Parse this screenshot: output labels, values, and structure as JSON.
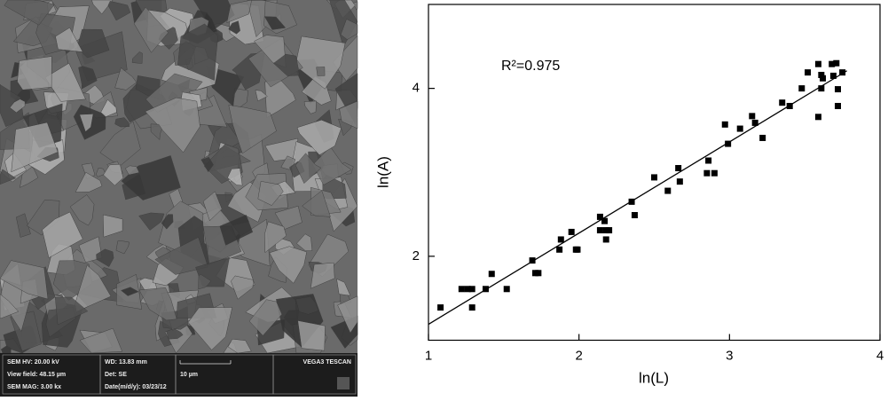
{
  "sem_image": {
    "info": [
      "SEM HV: 20.00 kV",
      "WD: 13.83 mm",
      "VEGA3 TESCAN",
      "View field: 48.15 µm",
      "Det: SE",
      "10 µm",
      "SEM MAG: 3.00 kx",
      "Date(m/d/y): 03/23/12"
    ]
  },
  "chart_data": {
    "type": "scatter",
    "annotation": "R²=0.975",
    "x_label": "ln(L)",
    "y_label": "ln(A)",
    "xlim": [
      1,
      4
    ],
    "ylim": [
      1,
      5
    ],
    "xticks": [
      1,
      2,
      3,
      4
    ],
    "yticks": [
      2,
      4
    ],
    "color": "#000000",
    "series": [
      {
        "x": [
          1.08,
          1.22,
          1.26,
          1.29,
          1.29,
          1.38,
          1.42,
          1.52,
          1.69,
          1.71,
          1.73,
          1.88,
          1.87,
          1.95,
          1.98,
          1.99,
          2.14,
          2.17,
          2.18,
          2.18,
          2.14,
          2.2,
          2.35,
          2.37,
          2.5,
          2.59,
          2.66,
          2.67,
          2.86,
          2.85,
          2.9,
          2.97,
          2.99,
          3.07,
          3.15,
          3.17,
          3.22,
          3.35,
          3.4,
          3.48,
          3.52,
          3.59,
          3.59,
          3.61,
          3.62,
          3.61,
          3.68,
          3.71,
          3.69,
          3.72,
          3.72,
          3.75
        ],
        "values": [
          1.39,
          1.61,
          1.61,
          1.61,
          1.39,
          1.61,
          1.79,
          1.61,
          1.95,
          1.8,
          1.8,
          2.2,
          2.08,
          2.29,
          2.08,
          2.08,
          2.47,
          2.42,
          2.2,
          2.31,
          2.31,
          2.31,
          2.65,
          2.49,
          2.94,
          2.78,
          3.05,
          2.89,
          3.14,
          2.99,
          2.99,
          3.57,
          3.34,
          3.52,
          3.67,
          3.59,
          3.41,
          3.83,
          3.79,
          4.0,
          4.19,
          4.29,
          3.66,
          4.16,
          4.12,
          4.0,
          4.29,
          4.3,
          4.15,
          3.99,
          3.79,
          4.19
        ]
      }
    ],
    "fit_line": {
      "x": [
        1,
        3.78
      ],
      "values": [
        1.19,
        4.21
      ]
    }
  }
}
